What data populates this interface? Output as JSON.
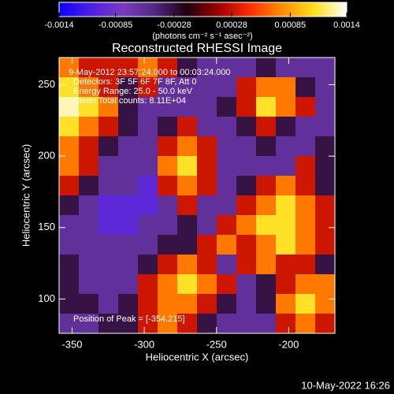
{
  "chart_data": {
    "type": "heatmap",
    "title": "Reconstructed RHESSI Image",
    "xlabel": "Heliocentric X (arcsec)",
    "ylabel": "Heliocentric Y (arcsec)",
    "xlim": [
      -359,
      -168
    ],
    "ylim": [
      76,
      269
    ],
    "xticks": [
      -350,
      -300,
      -250,
      -200
    ],
    "yticks": [
      100,
      150,
      200,
      250
    ],
    "colorbar": {
      "label": "(photons cm⁻² s⁻¹ asec⁻²)",
      "lim": [
        -0.0014,
        0.0014
      ],
      "ticks": [
        -0.0014,
        -0.00085,
        -0.00028,
        0.00028,
        0.00085,
        0.0014
      ],
      "colors": [
        "#0a00ff",
        "#5020e0",
        "#7a3ac0",
        "#502880",
        "#200010",
        "#a00000",
        "#ff3000",
        "#ff9000",
        "#ffe020",
        "#ffffff"
      ]
    },
    "annotations": [
      "9-May-2012 23:57:24.000 to 00:03:24.000",
      "Detectors: 3F 5F 6F 7F 8F, Att 0",
      "Energy Range: 25.0 - 50.0 keV",
      "Clean     Total counts: 8.11E+04"
    ],
    "peak_label": "Position of Peak = [-354,215]",
    "z": [
      [
        0.0007,
        0.0003,
        0.0003,
        0.0003,
        0.0007,
        0.0003,
        -0.0003,
        -0.0006,
        -0.0006,
        -0.0006,
        -0.0003,
        -0.0006,
        -0.0006,
        -0.0006
      ],
      [
        0.0011,
        0.0007,
        0.0003,
        -0.0003,
        0.0003,
        -0.0006,
        -0.0006,
        -0.0006,
        -0.0006,
        0.0003,
        0.0007,
        0.0007,
        -0.0003,
        -0.0006
      ],
      [
        0.0013,
        0.0011,
        0.0007,
        -0.0003,
        -0.0006,
        -0.0006,
        -0.0006,
        -0.0006,
        -0.0003,
        0.0003,
        0.0011,
        0.0007,
        0.0003,
        -0.0006
      ],
      [
        0.0011,
        0.0007,
        0.0003,
        -0.0003,
        -0.0006,
        -0.0003,
        0.0003,
        -0.0006,
        -0.0006,
        -0.0003,
        0.0003,
        -0.0003,
        -0.0006,
        -0.0006
      ],
      [
        0.0007,
        0.0003,
        -0.0003,
        -0.0006,
        -0.0006,
        0.0003,
        0.0007,
        0.0003,
        -0.0006,
        -0.0006,
        -0.0003,
        -0.0006,
        -0.0006,
        -0.0003
      ],
      [
        0.0007,
        0.0003,
        -0.0006,
        -0.0006,
        -0.0006,
        0.0007,
        0.0011,
        0.0003,
        -0.0006,
        -0.0006,
        -0.0006,
        -0.0006,
        0.0003,
        -0.0003
      ],
      [
        0.0003,
        -0.0003,
        -0.0006,
        -0.0006,
        -0.001,
        0.0003,
        0.0007,
        0.0003,
        -0.0006,
        -0.0003,
        0.0003,
        0.0007,
        0.0003,
        -0.0003
      ],
      [
        -0.0003,
        -0.0006,
        -0.001,
        -0.001,
        -0.001,
        -0.0006,
        0.0003,
        -0.0006,
        -0.0006,
        0.0003,
        0.0007,
        0.0011,
        0.0007,
        0.0003
      ],
      [
        -0.0006,
        -0.0006,
        -0.001,
        -0.001,
        -0.0006,
        -0.0006,
        -0.0003,
        -0.0006,
        0.0003,
        0.0007,
        0.0011,
        0.0011,
        0.0007,
        0.0003
      ],
      [
        -0.0006,
        -0.0006,
        -0.0006,
        -0.0006,
        -0.0006,
        -0.0003,
        -0.0003,
        0.0003,
        0.0007,
        0.0003,
        0.0007,
        0.0011,
        0.0007,
        0.0003
      ],
      [
        -0.0003,
        -0.0006,
        -0.0006,
        -0.0006,
        -0.0003,
        0.0003,
        0.0007,
        0.0003,
        -0.0006,
        0.0003,
        0.0007,
        0.0003,
        0.0003,
        -0.0003
      ],
      [
        -0.0003,
        -0.0006,
        -0.0006,
        -0.0006,
        0.0003,
        0.0007,
        0.0011,
        0.0007,
        0.0003,
        -0.0006,
        -0.0003,
        0.0003,
        0.0007,
        0.0007
      ],
      [
        -0.0003,
        -0.0003,
        -0.0006,
        -0.0003,
        0.0003,
        0.0007,
        0.0007,
        0.0003,
        -0.0003,
        -0.0006,
        -0.0003,
        0.0007,
        0.0011,
        0.0007
      ],
      [
        -0.0006,
        -0.0006,
        -0.0003,
        -0.0003,
        0.0003,
        0.0007,
        0.0003,
        -0.0003,
        -0.0006,
        -0.0006,
        -0.0006,
        0.0003,
        0.0007,
        0.0003
      ]
    ]
  },
  "footer": "10-May-2022 16:26"
}
